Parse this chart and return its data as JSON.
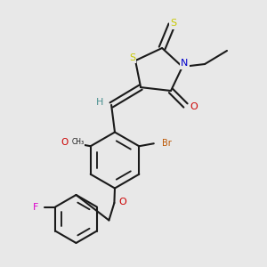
{
  "bg_color": "#e8e8e8",
  "bond_color": "#1a1a1a",
  "bond_lw": 1.5,
  "dbo": 0.013,
  "colors": {
    "S": "#c8c800",
    "N": "#0000cc",
    "O": "#cc0000",
    "Br": "#bb5500",
    "F": "#dd00cc",
    "H": "#4a9090",
    "C": "#1a1a1a"
  },
  "fs": 8.0
}
